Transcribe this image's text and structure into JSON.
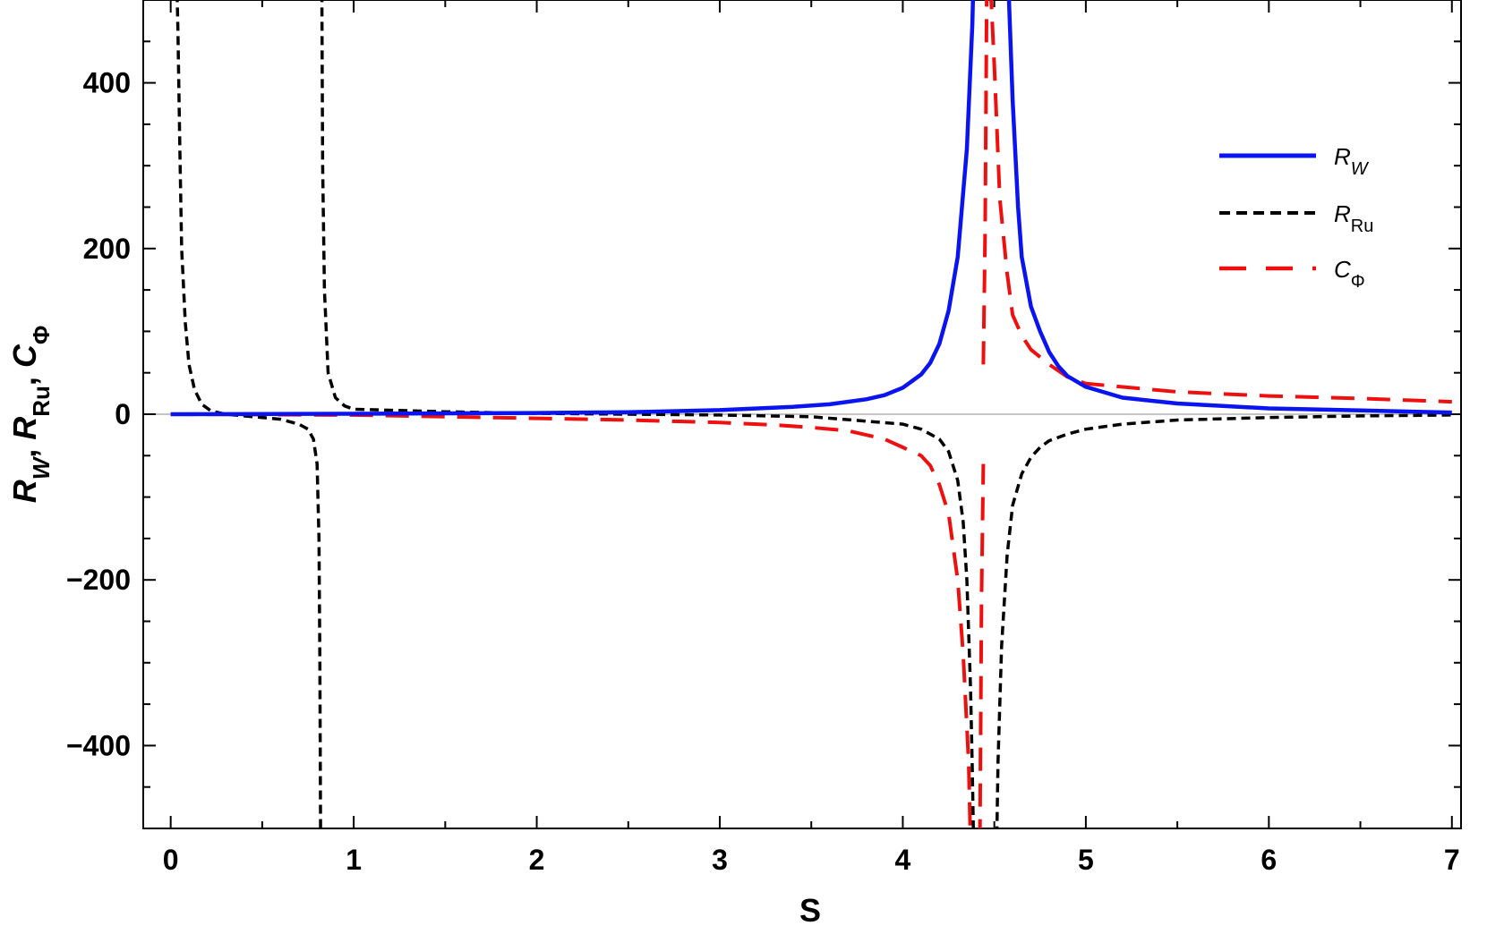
{
  "chart_data": {
    "type": "line",
    "xlabel": "S",
    "ylabel": {
      "parts": [
        {
          "t": "R",
          "i": true
        },
        {
          "t": "W",
          "sub": true,
          "i": true
        },
        {
          "t": ", "
        },
        {
          "t": "R",
          "i": true
        },
        {
          "t": "Ru",
          "sub": true
        },
        {
          "t": ", "
        },
        {
          "t": "C",
          "i": true
        },
        {
          "t": "Φ",
          "sub": true
        }
      ]
    },
    "xlim": [
      -0.15,
      7.05
    ],
    "ylim": [
      -500,
      500
    ],
    "x_ticks": [
      "0",
      "1",
      "2",
      "3",
      "4",
      "5",
      "6",
      "7"
    ],
    "y_ticks": [
      "−400",
      "−200",
      "0",
      "200",
      "400"
    ],
    "grid": false,
    "legend_position": "top-right",
    "series": [
      {
        "key": "rw",
        "legend": {
          "main": "R",
          "sub": "W",
          "sub_italic": true
        },
        "color": "#0a14f0",
        "style": "solid",
        "segments": [
          [
            [
              0,
              0
            ],
            [
              1,
              0.5
            ],
            [
              2,
              1.5
            ],
            [
              2.5,
              2.5
            ],
            [
              3,
              5
            ],
            [
              3.4,
              9
            ],
            [
              3.6,
              12
            ],
            [
              3.8,
              18
            ],
            [
              3.9,
              23
            ],
            [
              4.0,
              32
            ],
            [
              4.05,
              40
            ],
            [
              4.1,
              48
            ],
            [
              4.15,
              62
            ],
            [
              4.2,
              85
            ],
            [
              4.25,
              125
            ],
            [
              4.3,
              190
            ],
            [
              4.35,
              320
            ],
            [
              4.38,
              470
            ],
            [
              4.39,
              560
            ]
          ],
          [
            [
              4.57,
              560
            ],
            [
              4.6,
              380
            ],
            [
              4.63,
              250
            ],
            [
              4.65,
              190
            ],
            [
              4.7,
              130
            ],
            [
              4.75,
              100
            ],
            [
              4.8,
              75
            ],
            [
              4.85,
              58
            ],
            [
              4.9,
              46
            ],
            [
              5.0,
              33
            ],
            [
              5.2,
              20
            ],
            [
              5.5,
              13
            ],
            [
              6.0,
              7
            ],
            [
              6.5,
              4.5
            ],
            [
              7.0,
              2
            ]
          ]
        ]
      },
      {
        "key": "rru",
        "legend": {
          "main": "R",
          "sub": "Ru",
          "sub_italic": false
        },
        "color": "#000000",
        "style": "short-dash",
        "segments": [
          [
            [
              0.03,
              560
            ],
            [
              0.04,
              460
            ],
            [
              0.05,
              320
            ],
            [
              0.06,
              200
            ],
            [
              0.08,
              110
            ],
            [
              0.1,
              60
            ],
            [
              0.13,
              30
            ],
            [
              0.17,
              12
            ],
            [
              0.22,
              4
            ],
            [
              0.3,
              0
            ],
            [
              0.4,
              -2
            ],
            [
              0.5,
              -4
            ],
            [
              0.6,
              -6
            ],
            [
              0.7,
              -12
            ],
            [
              0.75,
              -18
            ],
            [
              0.78,
              -30
            ],
            [
              0.8,
              -60
            ],
            [
              0.81,
              -150
            ],
            [
              0.815,
              -300
            ],
            [
              0.82,
              -560
            ]
          ],
          [
            [
              0.825,
              560
            ],
            [
              0.83,
              300
            ],
            [
              0.84,
              150
            ],
            [
              0.86,
              50
            ],
            [
              0.9,
              20
            ],
            [
              0.95,
              10
            ],
            [
              1.0,
              6
            ],
            [
              1.5,
              3
            ],
            [
              2,
              1
            ],
            [
              3,
              -1
            ],
            [
              3.5,
              -3
            ],
            [
              4.0,
              -12
            ],
            [
              4.1,
              -18
            ],
            [
              4.2,
              -30
            ],
            [
              4.25,
              -45
            ],
            [
              4.3,
              -80
            ],
            [
              4.33,
              -130
            ],
            [
              4.35,
              -200
            ],
            [
              4.37,
              -330
            ],
            [
              4.38,
              -430
            ],
            [
              4.39,
              -560
            ]
          ],
          [
            [
              4.51,
              -560
            ],
            [
              4.52,
              -420
            ],
            [
              4.54,
              -280
            ],
            [
              4.57,
              -170
            ],
            [
              4.6,
              -110
            ],
            [
              4.65,
              -72
            ],
            [
              4.7,
              -52
            ],
            [
              4.75,
              -40
            ],
            [
              4.8,
              -32
            ],
            [
              4.9,
              -24
            ],
            [
              5.0,
              -18
            ],
            [
              5.2,
              -12
            ],
            [
              5.5,
              -7
            ],
            [
              6.0,
              -4
            ],
            [
              6.5,
              -2
            ],
            [
              7.0,
              -1
            ]
          ]
        ]
      },
      {
        "key": "cphi",
        "legend": {
          "main": "C",
          "sub": "Φ",
          "sub_italic": false
        },
        "color": "#ee0f0f",
        "style": "long-dash",
        "segments": [
          [
            [
              0,
              0
            ],
            [
              1,
              -1
            ],
            [
              2,
              -5
            ],
            [
              2.5,
              -7
            ],
            [
              3,
              -10
            ],
            [
              3.3,
              -13
            ],
            [
              3.5,
              -16
            ],
            [
              3.7,
              -20
            ],
            [
              3.9,
              -30
            ],
            [
              4.0,
              -40
            ],
            [
              4.1,
              -50
            ],
            [
              4.15,
              -62
            ],
            [
              4.2,
              -85
            ],
            [
              4.25,
              -120
            ],
            [
              4.3,
              -200
            ],
            [
              4.33,
              -290
            ],
            [
              4.36,
              -420
            ],
            [
              4.37,
              -520
            ],
            [
              4.375,
              -560
            ]
          ],
          [
            [
              4.42,
              -560
            ],
            [
              4.43,
              -220
            ],
            [
              4.44,
              -60
            ]
          ],
          [
            [
              4.44,
              60
            ],
            [
              4.45,
              220
            ],
            [
              4.46,
              560
            ]
          ],
          [
            [
              4.47,
              560
            ],
            [
              4.5,
              420
            ],
            [
              4.53,
              260
            ],
            [
              4.57,
              170
            ],
            [
              4.6,
              120
            ],
            [
              4.65,
              95
            ],
            [
              4.7,
              78
            ],
            [
              4.8,
              60
            ],
            [
              4.9,
              45
            ],
            [
              5.0,
              37
            ],
            [
              5.5,
              27
            ],
            [
              6.0,
              22
            ],
            [
              6.5,
              19
            ],
            [
              7.0,
              15
            ]
          ]
        ]
      }
    ]
  }
}
